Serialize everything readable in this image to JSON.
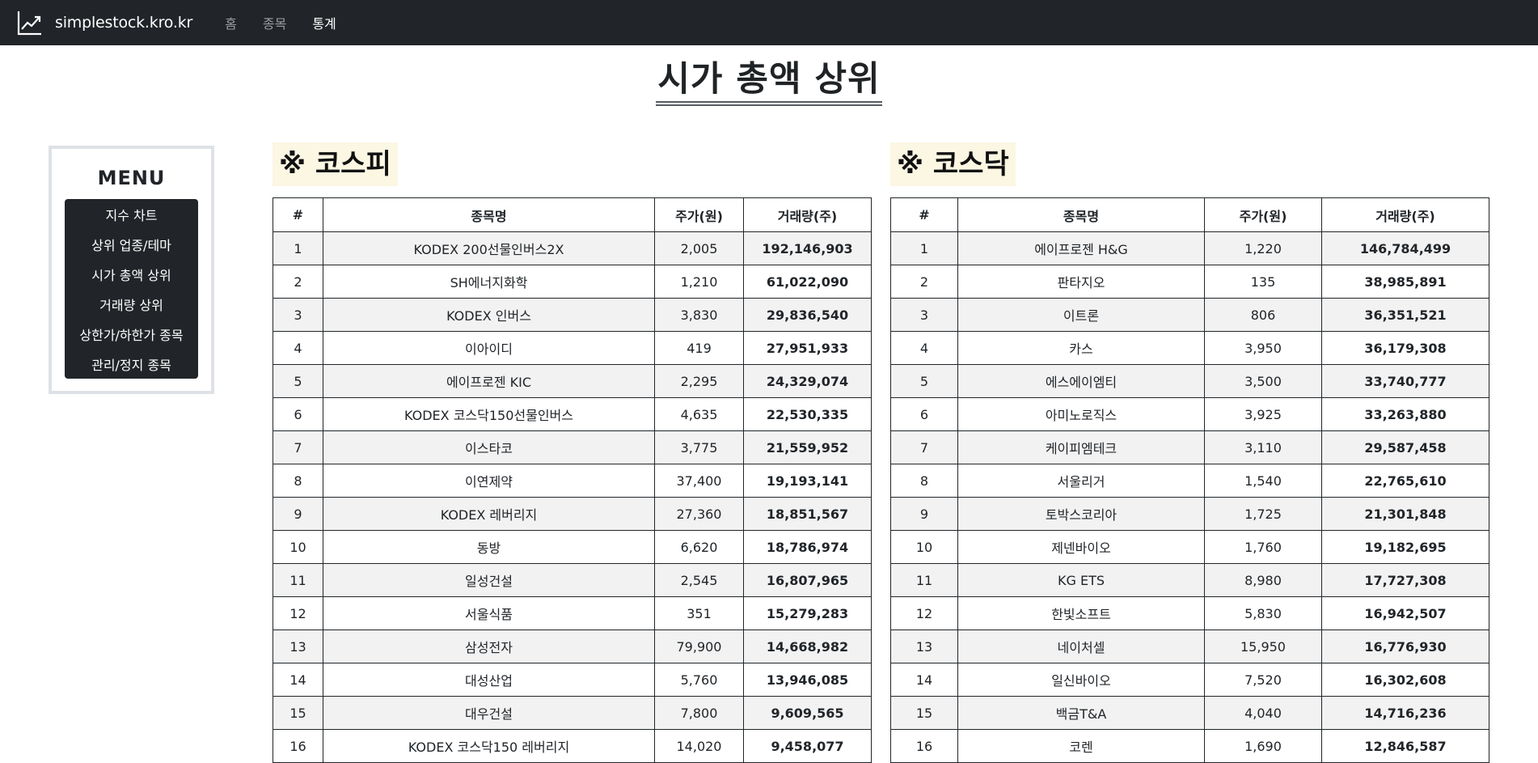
{
  "nav": {
    "brand": "simplestock.kro.kr",
    "links": [
      "홈",
      "종목",
      "통계"
    ]
  },
  "page_title": "시가 총액 상위",
  "sidebar": {
    "title": "MENU",
    "items": [
      "지수 차트",
      "상위 업종/테마",
      "시가 총액 상위",
      "거래량 상위",
      "상한가/하한가 종목",
      "관리/정지 종목"
    ]
  },
  "kospi": {
    "header": "※ 코스피",
    "columns": [
      "#",
      "종목명",
      "주가(원)",
      "거래량(주)"
    ],
    "rows": [
      [
        "1",
        "KODEX 200선물인버스2X",
        "2,005",
        "192,146,903"
      ],
      [
        "2",
        "SH에너지화학",
        "1,210",
        "61,022,090"
      ],
      [
        "3",
        "KODEX 인버스",
        "3,830",
        "29,836,540"
      ],
      [
        "4",
        "이아이디",
        "419",
        "27,951,933"
      ],
      [
        "5",
        "에이프로젠 KIC",
        "2,295",
        "24,329,074"
      ],
      [
        "6",
        "KODEX 코스닥150선물인버스",
        "4,635",
        "22,530,335"
      ],
      [
        "7",
        "이스타코",
        "3,775",
        "21,559,952"
      ],
      [
        "8",
        "이연제약",
        "37,400",
        "19,193,141"
      ],
      [
        "9",
        "KODEX 레버리지",
        "27,360",
        "18,851,567"
      ],
      [
        "10",
        "동방",
        "6,620",
        "18,786,974"
      ],
      [
        "11",
        "일성건설",
        "2,545",
        "16,807,965"
      ],
      [
        "12",
        "서울식품",
        "351",
        "15,279,283"
      ],
      [
        "13",
        "삼성전자",
        "79,900",
        "14,668,982"
      ],
      [
        "14",
        "대성산업",
        "5,760",
        "13,946,085"
      ],
      [
        "15",
        "대우건설",
        "7,800",
        "9,609,565"
      ],
      [
        "16",
        "KODEX 코스닥150 레버리지",
        "14,020",
        "9,458,077"
      ]
    ]
  },
  "kosdaq": {
    "header": "※ 코스닥",
    "columns": [
      "#",
      "종목명",
      "주가(원)",
      "거래량(주)"
    ],
    "rows": [
      [
        "1",
        "에이프로젠 H&G",
        "1,220",
        "146,784,499"
      ],
      [
        "2",
        "판타지오",
        "135",
        "38,985,891"
      ],
      [
        "3",
        "이트론",
        "806",
        "36,351,521"
      ],
      [
        "4",
        "카스",
        "3,950",
        "36,179,308"
      ],
      [
        "5",
        "에스에이엠티",
        "3,500",
        "33,740,777"
      ],
      [
        "6",
        "아미노로직스",
        "3,925",
        "33,263,880"
      ],
      [
        "7",
        "케이피엠테크",
        "3,110",
        "29,587,458"
      ],
      [
        "8",
        "서울리거",
        "1,540",
        "22,765,610"
      ],
      [
        "9",
        "토박스코리아",
        "1,725",
        "21,301,848"
      ],
      [
        "10",
        "제넨바이오",
        "1,760",
        "19,182,695"
      ],
      [
        "11",
        "KG ETS",
        "8,980",
        "17,727,308"
      ],
      [
        "12",
        "한빛소프트",
        "5,830",
        "16,942,507"
      ],
      [
        "13",
        "네이처셀",
        "15,950",
        "16,776,930"
      ],
      [
        "14",
        "일신바이오",
        "7,520",
        "16,302,608"
      ],
      [
        "15",
        "백금T&A",
        "4,040",
        "14,716,236"
      ],
      [
        "16",
        "코렌",
        "1,690",
        "12,846,587"
      ]
    ]
  }
}
